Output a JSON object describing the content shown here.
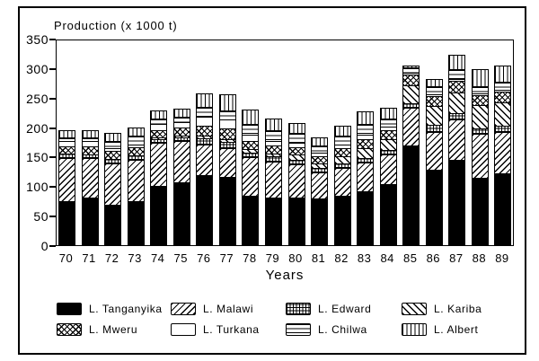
{
  "window": {
    "background": "#ffffff",
    "frame_color": "#000000"
  },
  "chart_data": {
    "type": "bar",
    "stacked": true,
    "title": "Production (x 1000 t)",
    "xlabel": "Years",
    "ylabel": "",
    "ylim": [
      0,
      350
    ],
    "yticks": [
      0,
      50,
      100,
      150,
      200,
      250,
      300,
      350
    ],
    "grid": false,
    "legend_position": "bottom",
    "foreground": "#000000",
    "background": "#ffffff",
    "categories": [
      "70",
      "71",
      "72",
      "73",
      "74",
      "75",
      "76",
      "77",
      "78",
      "79",
      "80",
      "81",
      "82",
      "83",
      "84",
      "85",
      "86",
      "87",
      "88",
      "89"
    ],
    "series": [
      {
        "name": "L. Tanganyika",
        "pattern": "solid-black",
        "values": [
          75,
          80,
          68,
          75,
          101,
          106,
          119,
          115,
          84,
          80,
          80,
          79,
          84,
          91,
          104,
          169,
          128,
          145,
          114,
          122
        ]
      },
      {
        "name": "L. Malawi",
        "pattern": "diagonal-forward",
        "values": [
          73,
          67,
          71,
          70,
          72,
          70,
          52,
          50,
          65,
          62,
          57,
          44,
          47,
          49,
          50,
          64,
          64,
          68,
          74,
          70
        ]
      },
      {
        "name": "L. Edward",
        "pattern": "grid",
        "values": [
          7,
          7,
          7,
          7,
          7,
          7,
          10,
          10,
          8,
          8,
          8,
          8,
          8,
          8,
          8,
          8,
          12,
          10,
          10,
          10
        ]
      },
      {
        "name": "L. Kariba",
        "pattern": "diagonal-back",
        "values": [
          0,
          0,
          0,
          0,
          2,
          3,
          4,
          5,
          6,
          6,
          8,
          8,
          12,
          16,
          18,
          30,
          32,
          35,
          40,
          40
        ]
      },
      {
        "name": "L. Mweru",
        "pattern": "diamond-crosshatch",
        "values": [
          13,
          13,
          14,
          14,
          13,
          13,
          18,
          18,
          14,
          13,
          13,
          12,
          13,
          15,
          15,
          18,
          16,
          20,
          16,
          18
        ]
      },
      {
        "name": "L. Turkana",
        "pattern": "plain-white",
        "values": [
          9,
          9,
          5,
          5,
          10,
          10,
          15,
          15,
          10,
          8,
          8,
          6,
          6,
          8,
          6,
          3,
          3,
          4,
          3,
          3
        ]
      },
      {
        "name": "L. Chilwa",
        "pattern": "horizontal-lines",
        "values": [
          5,
          6,
          12,
          14,
          10,
          9,
          17,
          15,
          18,
          18,
          17,
          12,
          16,
          18,
          14,
          10,
          14,
          16,
          12,
          14
        ]
      },
      {
        "name": "L. Albert",
        "pattern": "vertical-lines",
        "values": [
          13,
          13,
          14,
          15,
          14,
          14,
          23,
          28,
          25,
          20,
          16,
          14,
          16,
          22,
          18,
          3,
          12,
          25,
          29,
          28
        ]
      }
    ],
    "totals": [
      195,
      195,
      191,
      200,
      229,
      232,
      258,
      256,
      230,
      215,
      207,
      183,
      202,
      227,
      233,
      305,
      281,
      323,
      298,
      305
    ],
    "legend_rows": [
      [
        "L. Tanganyika",
        "L. Malawi",
        "L. Edward",
        "L. Kariba"
      ],
      [
        "L. Mweru",
        "L. Turkana",
        "L. Chilwa",
        "L. Albert"
      ]
    ]
  }
}
